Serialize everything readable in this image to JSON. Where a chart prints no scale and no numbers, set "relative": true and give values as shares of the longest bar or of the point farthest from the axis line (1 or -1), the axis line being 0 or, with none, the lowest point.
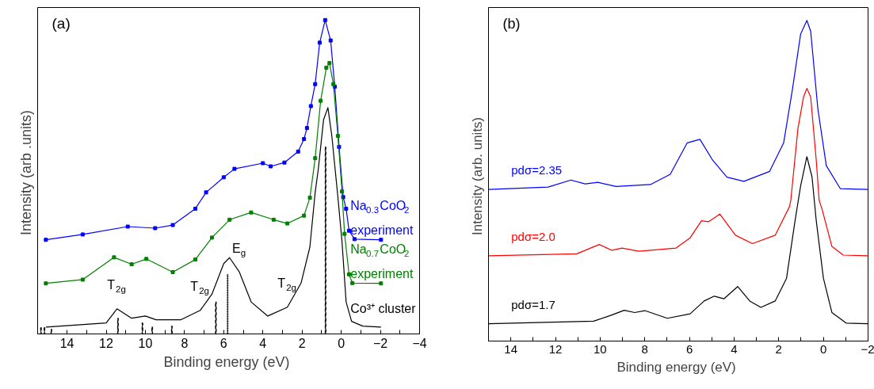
{
  "chart_data": [
    {
      "type": "line",
      "relative": true,
      "xlabel": "Binding energy  (eV)",
      "ylabel": "Intensity  (arb .units)",
      "xlim": [
        15.5,
        -4
      ],
      "xticks": [
        14,
        {
          "value": 13,
          "label": null
        },
        12,
        {
          "value": 11,
          "label": null
        },
        10,
        {
          "value": 9,
          "label": null
        },
        8,
        {
          "value": 7,
          "label": null
        },
        6,
        {
          "value": 5,
          "label": null
        },
        4,
        {
          "value": 3,
          "label": null
        },
        2,
        {
          "value": 1,
          "label": null
        },
        0,
        {
          "value": -1,
          "label": null
        },
        -2,
        {
          "value": -3,
          "label": null
        },
        -4
      ],
      "grid": false,
      "annotations": [
        "(a)",
        {
          "text": "experiment",
          "x": -2.03,
          "y": 0.3
        },
        {
          "text": "experiment",
          "x": -2.03,
          "y": 0.161
        },
        {
          "text": "T$_{2g}$",
          "x": 11.45,
          "y": 0.08
        },
        {
          "text": "T$_{2g}$",
          "x": 7.2,
          "y": 0.075
        },
        {
          "text": "E$_{g}$",
          "x": 5.2,
          "y": 0.197
        },
        {
          "text": "T$_{2g}$",
          "x": 2.75,
          "y": 0.085
        }
      ],
      "series": [
        {
          "name": "Na$_{0.3}$CoO$_{2}$",
          "color": "#0000ff",
          "marker": "square",
          "x": [
            15.08,
            13.2,
            10.9,
            9.5,
            8.6,
            7.45,
            6.9,
            6.0,
            5.45,
            4.0,
            3.6,
            2.9,
            2.2,
            1.9,
            1.75,
            1.55,
            1.33,
            1.1,
            0.82,
            0.54,
            0.33,
            0.11,
            -0.1,
            -0.25,
            -0.4,
            -0.68,
            -2.03
          ],
          "values": [
            0.3,
            0.317,
            0.342,
            0.337,
            0.347,
            0.399,
            0.451,
            0.499,
            0.526,
            0.544,
            0.534,
            0.546,
            0.581,
            0.621,
            0.656,
            0.726,
            0.796,
            0.928,
            1.0,
            0.935,
            0.788,
            0.596,
            0.436,
            0.399,
            0.329,
            0.302,
            0.3
          ]
        },
        {
          "name": "Na$_{0.7}$CoO$_{2}$",
          "color": "#008000",
          "marker": "square",
          "x": [
            15.08,
            13.2,
            11.6,
            10.7,
            9.95,
            8.6,
            7.45,
            6.6,
            5.7,
            4.6,
            3.45,
            2.75,
            1.9,
            1.6,
            1.33,
            1.05,
            0.76,
            0.6,
            0.4,
            0.17,
            -0.04,
            -0.17,
            -0.4,
            -0.57,
            -2.03
          ],
          "values": [
            0.161,
            0.173,
            0.244,
            0.222,
            0.239,
            0.197,
            0.237,
            0.307,
            0.364,
            0.387,
            0.364,
            0.352,
            0.377,
            0.434,
            0.56,
            0.743,
            0.848,
            0.863,
            0.796,
            0.631,
            0.454,
            0.319,
            0.19,
            0.162,
            0.161
          ]
        },
        {
          "name": "Co³⁺ cluster",
          "color": "#000000",
          "x": [
            15.08,
            12,
            11.45,
            10.7,
            10.0,
            9.45,
            8.2,
            7.2,
            6.6,
            6.0,
            5.7,
            5.2,
            4.6,
            3.75,
            2.75,
            2.05,
            1.6,
            1.33,
            1.17,
            0.9,
            0.68,
            0.48,
            0.17,
            -0.04,
            -0.25,
            -0.53,
            -1.1,
            -2.03
          ],
          "values": [
            0.022,
            0.035,
            0.08,
            0.05,
            0.057,
            0.045,
            0.045,
            0.075,
            0.127,
            0.224,
            0.243,
            0.197,
            0.102,
            0.057,
            0.085,
            0.162,
            0.277,
            0.451,
            0.525,
            0.683,
            0.721,
            0.631,
            0.436,
            0.294,
            0.102,
            0.04,
            0.025,
            0.022
          ]
        },
        {
          "type": "bar",
          "color": "#000000",
          "line_style": "dashed",
          "x": [
            15.33,
            15.15,
            14.8,
            11.4,
            10.15,
            9.65,
            8.65,
            6.4,
            0.8
          ],
          "values": [
            0.02,
            0.02,
            0.015,
            0.05,
            0.035,
            0.022,
            0.025,
            0.102,
            0.596
          ]
        },
        {
          "type": "bar",
          "color": "#000000",
          "line_style": "dotted",
          "x": [
            5.8
          ],
          "values": [
            0.19
          ]
        }
      ]
    },
    {
      "type": "line",
      "relative": true,
      "xlabel": "Binding energy  (eV)",
      "ylabel": "Intensity  (arb. units)",
      "xlim": [
        15,
        -2
      ],
      "xticks": [
        14,
        {
          "value": 13,
          "label": null
        },
        12,
        {
          "value": 11,
          "label": null
        },
        10,
        {
          "value": 9,
          "label": null
        },
        8,
        {
          "value": 7,
          "label": null
        },
        6,
        {
          "value": 5,
          "label": null
        },
        4,
        {
          "value": 3,
          "label": null
        },
        2,
        {
          "value": 1,
          "label": null
        },
        0,
        {
          "value": -1,
          "label": null
        },
        -2
      ],
      "grid": false,
      "annotations": [
        "(b)"
      ],
      "series": [
        {
          "name": "pdσ=2.35",
          "color": "#0000ff",
          "x": [
            15.0,
            12.33,
            11.31,
            10.67,
            10.1,
            9.28,
            7.75,
            6.86,
            6.1,
            5.53,
            4.96,
            4.32,
            3.56,
            2.41,
            1.78,
            1.4,
            1.02,
            0.74,
            0.57,
            0.25,
            -0.13,
            -0.76,
            -2
          ],
          "values": [
            0.473,
            0.48,
            0.502,
            0.49,
            0.495,
            0.482,
            0.488,
            0.52,
            0.618,
            0.629,
            0.564,
            0.511,
            0.498,
            0.529,
            0.618,
            0.779,
            0.957,
            1.0,
            0.966,
            0.725,
            0.547,
            0.475,
            0.473
          ]
        },
        {
          "name": "pdσ=2.0",
          "color": "#ff0000",
          "x": [
            15.0,
            11.05,
            10.04,
            9.47,
            9.02,
            8.26,
            6.6,
            5.97,
            5.46,
            5.15,
            4.64,
            3.94,
            3.18,
            2.16,
            1.52,
            1.46,
            1.14,
            0.89,
            0.74,
            0.57,
            0.32,
            0.19,
            0.06,
            -0.38,
            -0.89,
            -2
          ],
          "values": [
            0.266,
            0.272,
            0.301,
            0.283,
            0.29,
            0.28,
            0.29,
            0.322,
            0.375,
            0.372,
            0.396,
            0.33,
            0.304,
            0.33,
            0.419,
            0.439,
            0.663,
            0.761,
            0.788,
            0.761,
            0.564,
            0.439,
            0.411,
            0.295,
            0.268,
            0.266
          ]
        },
        {
          "name": "pdσ=1.7",
          "color": "#000000",
          "x": [
            15.0,
            10.29,
            9.53,
            8.92,
            8.45,
            8.0,
            6.99,
            5.97,
            5.34,
            4.89,
            4.45,
            3.84,
            3.3,
            2.8,
            2.16,
            1.65,
            1.27,
            1.02,
            0.74,
            0.51,
            0.32,
            0.0,
            -0.38,
            -1.02,
            -2
          ],
          "values": [
            0.054,
            0.062,
            0.08,
            0.096,
            0.089,
            0.095,
            0.071,
            0.085,
            0.125,
            0.14,
            0.132,
            0.17,
            0.125,
            0.105,
            0.125,
            0.196,
            0.375,
            0.484,
            0.575,
            0.512,
            0.375,
            0.196,
            0.089,
            0.056,
            0.054
          ]
        }
      ]
    }
  ]
}
